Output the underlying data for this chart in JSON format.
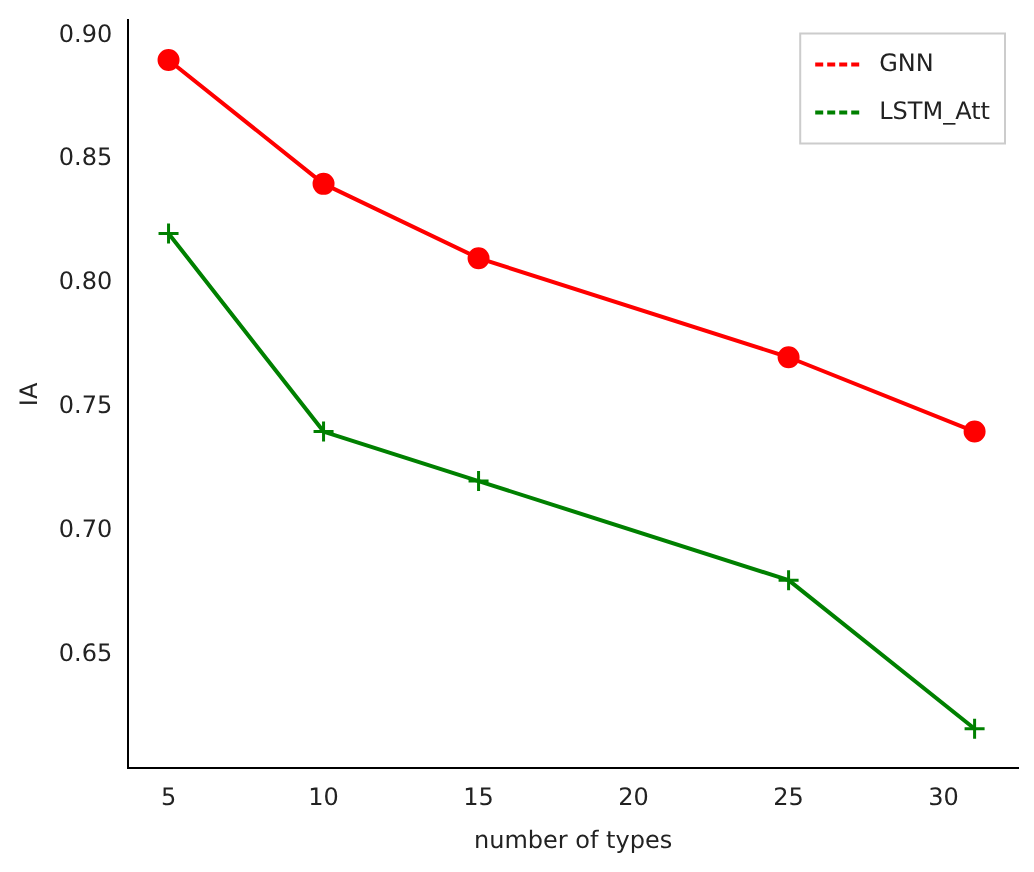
{
  "chart_data": {
    "type": "line",
    "xlabel": "number of types",
    "ylabel": "IA",
    "x": [
      5,
      10,
      15,
      25,
      31
    ],
    "series": [
      {
        "name": "GNN",
        "color": "#ff0000",
        "values": [
          0.89,
          0.84,
          0.81,
          0.77,
          0.74
        ],
        "marker": "circle"
      },
      {
        "name": "LSTM_Att",
        "color": "#008000",
        "values": [
          0.82,
          0.74,
          0.72,
          0.68,
          0.62
        ],
        "marker": "cross"
      }
    ],
    "xlim": [
      3.7,
      32.4
    ],
    "xticks": [
      5,
      10,
      15,
      20,
      25,
      30
    ],
    "ylim": [
      0.604,
      0.906
    ],
    "yticks": [
      {
        "value": 0.65,
        "label": "0.65"
      },
      {
        "value": 0.7,
        "label": "0.70"
      },
      {
        "value": 0.75,
        "label": "0.75"
      },
      {
        "value": 0.8,
        "label": "0.80"
      },
      {
        "value": 0.85,
        "label": "0.85"
      },
      {
        "value": 0.9,
        "label": "0.90"
      }
    ],
    "legend": "top right",
    "grid": false,
    "line_style": "solid"
  }
}
